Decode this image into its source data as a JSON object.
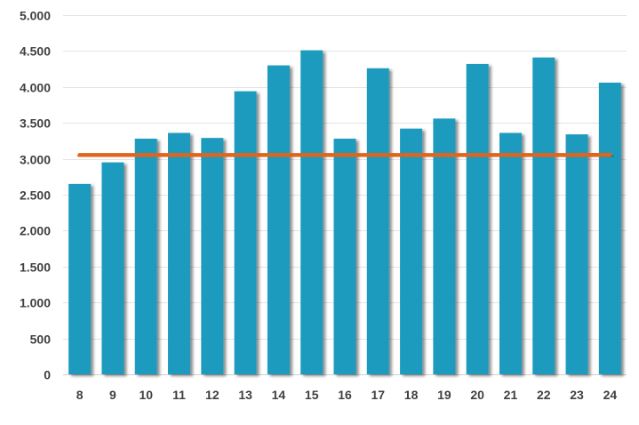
{
  "chart_data": {
    "type": "bar",
    "title": "",
    "xlabel": "",
    "ylabel": "",
    "categories": [
      "8",
      "9",
      "10",
      "11",
      "12",
      "13",
      "14",
      "15",
      "16",
      "17",
      "18",
      "19",
      "20",
      "21",
      "22",
      "23",
      "24"
    ],
    "series": [
      {
        "name": "values",
        "type": "bar",
        "color": "#1a9bbf",
        "values": [
          2650,
          2950,
          3280,
          3360,
          3290,
          3940,
          4300,
          4510,
          3280,
          4260,
          3420,
          3560,
          4320,
          3360,
          4410,
          3340,
          4060
        ]
      },
      {
        "name": "average",
        "type": "line",
        "color": "#e2641e",
        "values": [
          3050,
          3050,
          3050,
          3050,
          3050,
          3050,
          3050,
          3050,
          3050,
          3050,
          3050,
          3050,
          3050,
          3050,
          3050,
          3050,
          3060
        ]
      }
    ],
    "ylim": [
      0,
      5000
    ],
    "yticks": [
      0,
      500,
      1000,
      1500,
      2000,
      2500,
      3000,
      3500,
      4000,
      4500,
      5000
    ],
    "ytick_labels": [
      "0",
      "500",
      "1.000",
      "1.500",
      "2.000",
      "2.500",
      "3.000",
      "3.500",
      "4.000",
      "4.500",
      "5.000"
    ],
    "grid": true,
    "legend": "none"
  }
}
